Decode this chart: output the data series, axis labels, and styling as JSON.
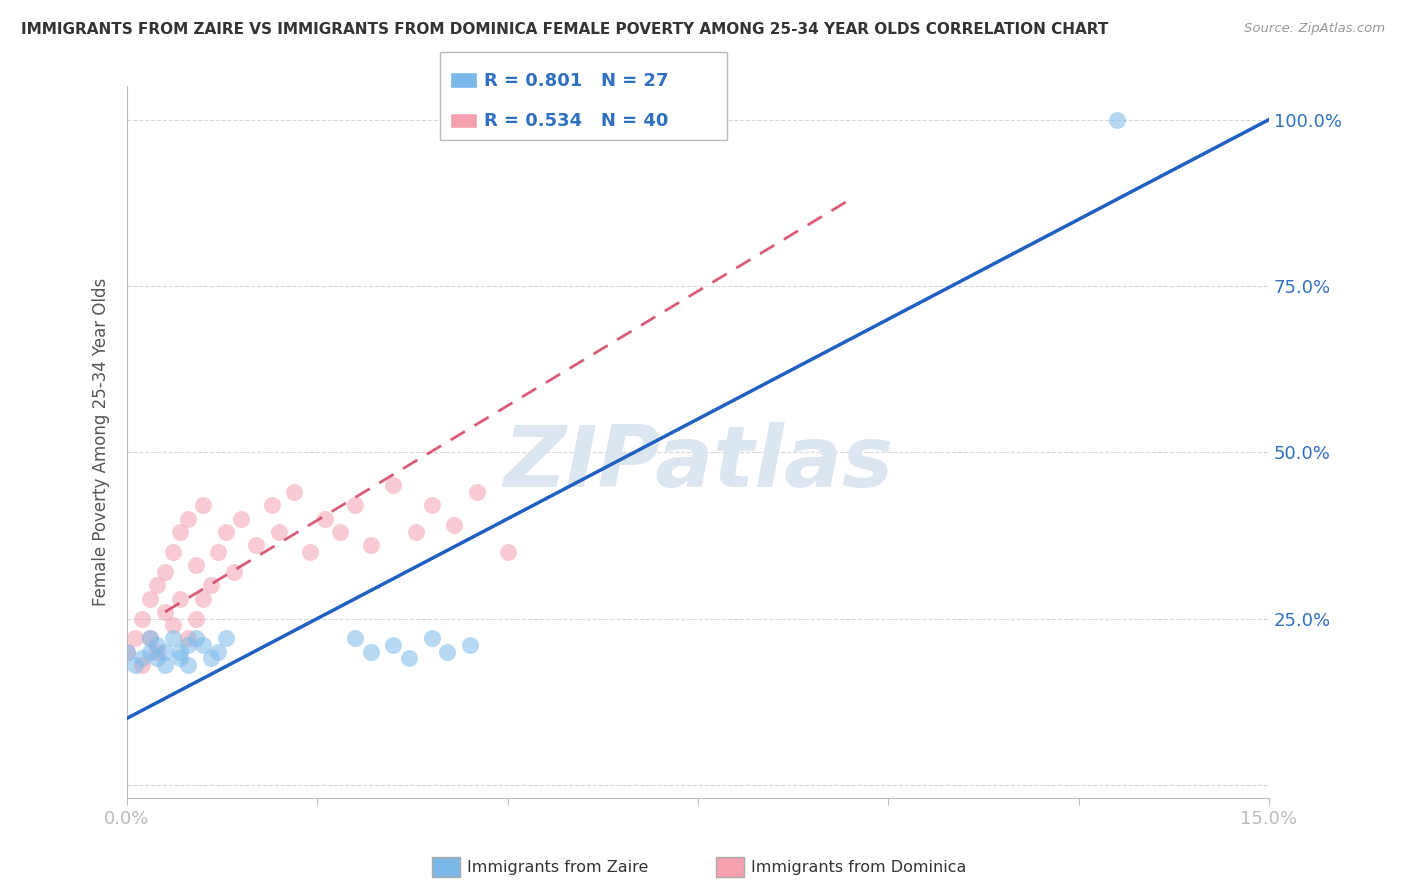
{
  "title": "IMMIGRANTS FROM ZAIRE VS IMMIGRANTS FROM DOMINICA FEMALE POVERTY AMONG 25-34 YEAR OLDS CORRELATION CHART",
  "source": "Source: ZipAtlas.com",
  "ylabel": "Female Poverty Among 25-34 Year Olds",
  "xlim": [
    0.0,
    0.15
  ],
  "ylim": [
    -0.02,
    1.05
  ],
  "zaire_color": "#7ab8e8",
  "dominica_color": "#f4a0b0",
  "zaire_R": 0.801,
  "zaire_N": 27,
  "dominica_R": 0.534,
  "dominica_N": 40,
  "zaire_line_color": "#2060c0",
  "dominica_line_color": "#d04060",
  "watermark": "ZIPatlas",
  "watermark_color": "#dce6f0",
  "background_color": "#ffffff",
  "grid_color": "#cccccc",
  "zaire_x": [
    0.0,
    0.001,
    0.002,
    0.003,
    0.003,
    0.004,
    0.004,
    0.005,
    0.005,
    0.006,
    0.007,
    0.007,
    0.008,
    0.008,
    0.009,
    0.01,
    0.011,
    0.012,
    0.013,
    0.03,
    0.032,
    0.035,
    0.037,
    0.04,
    0.042,
    0.045,
    0.13
  ],
  "zaire_y": [
    0.2,
    0.18,
    0.19,
    0.22,
    0.2,
    0.19,
    0.21,
    0.2,
    0.18,
    0.22,
    0.2,
    0.19,
    0.21,
    0.18,
    0.22,
    0.21,
    0.19,
    0.2,
    0.22,
    0.22,
    0.2,
    0.21,
    0.19,
    0.22,
    0.2,
    0.21,
    1.0
  ],
  "dominica_x": [
    0.0,
    0.001,
    0.002,
    0.002,
    0.003,
    0.003,
    0.004,
    0.004,
    0.005,
    0.005,
    0.006,
    0.006,
    0.007,
    0.007,
    0.008,
    0.008,
    0.009,
    0.009,
    0.01,
    0.01,
    0.011,
    0.012,
    0.013,
    0.014,
    0.015,
    0.017,
    0.019,
    0.02,
    0.022,
    0.024,
    0.026,
    0.028,
    0.03,
    0.032,
    0.035,
    0.038,
    0.04,
    0.043,
    0.046,
    0.05
  ],
  "dominica_y": [
    0.2,
    0.22,
    0.25,
    0.18,
    0.28,
    0.22,
    0.3,
    0.2,
    0.26,
    0.32,
    0.24,
    0.35,
    0.28,
    0.38,
    0.22,
    0.4,
    0.25,
    0.33,
    0.28,
    0.42,
    0.3,
    0.35,
    0.38,
    0.32,
    0.4,
    0.36,
    0.42,
    0.38,
    0.44,
    0.35,
    0.4,
    0.38,
    0.42,
    0.36,
    0.45,
    0.38,
    0.42,
    0.39,
    0.44,
    0.35
  ],
  "zaire_line_x": [
    0.0,
    0.15
  ],
  "zaire_line_y": [
    0.1,
    1.0
  ],
  "dominica_line_x": [
    0.005,
    0.095
  ],
  "dominica_line_y": [
    0.26,
    0.88
  ]
}
